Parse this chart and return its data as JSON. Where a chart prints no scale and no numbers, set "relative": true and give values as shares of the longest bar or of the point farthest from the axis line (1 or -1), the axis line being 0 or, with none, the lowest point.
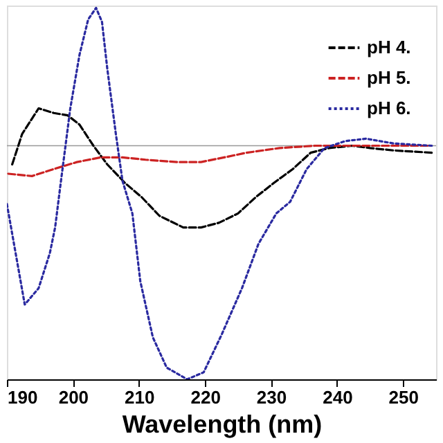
{
  "chart_data": {
    "type": "line",
    "xlabel": "Wavelength (nm)",
    "relative": true,
    "xlim": [
      190,
      255
    ],
    "xticks": [
      190,
      200,
      210,
      220,
      230,
      240,
      250
    ],
    "legend": "top right",
    "grid": false,
    "series": [
      {
        "name": "pH 4.",
        "color": "#000000",
        "line_style": "dashed",
        "x": [
          190.8,
          192.3,
          194.8,
          197.1,
          199.2,
          201.0,
          203.1,
          205.2,
          207.9,
          210.4,
          213.1,
          216.7,
          219.4,
          222.1,
          225.0,
          227.7,
          230.4,
          233.3,
          236.0,
          238.8,
          242.3,
          245.0,
          248.5,
          254.4
        ],
        "values": [
          -0.08,
          0.05,
          0.16,
          0.14,
          0.13,
          0.09,
          0,
          -0.08,
          -0.16,
          -0.22,
          -0.3,
          -0.35,
          -0.35,
          -0.33,
          -0.29,
          -0.22,
          -0.16,
          -0.1,
          -0.03,
          -0.01,
          0,
          -0.01,
          -0.02,
          -0.03
        ]
      },
      {
        "name": "pH 5.",
        "color": "#cc2222",
        "line_style": "dashed",
        "x": [
          190.2,
          193.8,
          197.1,
          200.6,
          204.2,
          207.5,
          211.0,
          215.8,
          219.4,
          222.9,
          226.3,
          231.3,
          236.7,
          243.8,
          254.2
        ],
        "values": [
          -0.12,
          -0.13,
          -0.1,
          -0.07,
          -0.05,
          -0.05,
          -0.06,
          -0.07,
          -0.07,
          -0.05,
          -0.03,
          -0.01,
          0,
          0,
          0
        ]
      },
      {
        "name": "pH 6.",
        "color": "#2a2aa0",
        "line_style": "dotted",
        "x": [
          190.0,
          192.7,
          194.8,
          196.5,
          197.3,
          198.1,
          199.6,
          201.0,
          202.3,
          203.5,
          204.4,
          205.2,
          206.5,
          207.5,
          209.0,
          210.2,
          212.1,
          214.2,
          217.3,
          219.8,
          222.5,
          225.6,
          228.1,
          230.8,
          232.9,
          235.4,
          238.1,
          241.3,
          244.4,
          248.5,
          254.4
        ],
        "values": [
          -0.25,
          -0.68,
          -0.61,
          -0.46,
          -0.35,
          -0.17,
          0.16,
          0.39,
          0.54,
          0.59,
          0.53,
          0.33,
          0.05,
          -0.15,
          -0.29,
          -0.58,
          -0.82,
          -0.95,
          -1.0,
          -0.97,
          -0.81,
          -0.61,
          -0.42,
          -0.29,
          -0.24,
          -0.1,
          -0.01,
          0.02,
          0.03,
          0.01,
          0
        ]
      }
    ]
  }
}
